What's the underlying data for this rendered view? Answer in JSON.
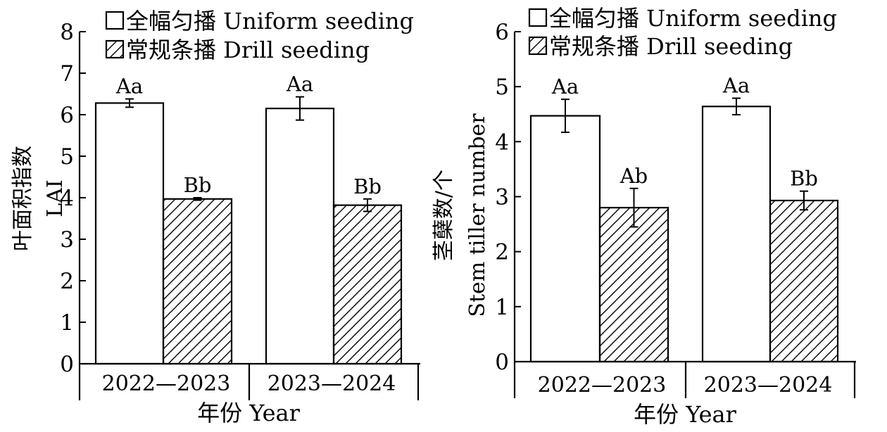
{
  "chart_data": [
    {
      "type": "bar",
      "categories": [
        "2022—2023",
        "2023—2024"
      ],
      "series": [
        {
          "name": "全幅匀播 Uniform seeding",
          "pattern": "none",
          "values": [
            6.28,
            6.15
          ],
          "errors": [
            0.1,
            0.28
          ],
          "labels": [
            "Aa",
            "Aa"
          ]
        },
        {
          "name": "常规条播 Drill seeding",
          "pattern": "hatch",
          "values": [
            3.97,
            3.82
          ],
          "errors": [
            0.03,
            0.15
          ],
          "labels": [
            "Bb",
            "Bb"
          ]
        }
      ],
      "ylim": [
        0,
        8
      ],
      "yticks": [
        "0",
        "1",
        "2",
        "3",
        "4",
        "5",
        "6",
        "7",
        "8"
      ],
      "ylabel_lines": [
        "叶面积指数",
        "LAI"
      ],
      "xlabel": "年份 Year",
      "legend": "top-left"
    },
    {
      "type": "bar",
      "categories": [
        "2022—2023",
        "2023—2024"
      ],
      "series": [
        {
          "name": "全幅匀播 Uniform seeding",
          "pattern": "none",
          "values": [
            4.47,
            4.64
          ],
          "errors": [
            0.3,
            0.15
          ],
          "labels": [
            "Aa",
            "Aa"
          ]
        },
        {
          "name": "常规条播 Drill seeding",
          "pattern": "hatch",
          "values": [
            2.8,
            2.93
          ],
          "errors": [
            0.35,
            0.17
          ],
          "labels": [
            "Ab",
            "Bb"
          ]
        }
      ],
      "ylim": [
        0,
        6
      ],
      "yticks": [
        "0",
        "1",
        "2",
        "3",
        "4",
        "5",
        "6"
      ],
      "ylabel_lines": [
        "茎蘖数/个",
        "Stem tiller number"
      ],
      "xlabel": "年份 Year",
      "legend": "top-left"
    }
  ],
  "colors": {
    "axis": "#000000",
    "bar_fill": "#ffffff",
    "hatch": "#000000"
  }
}
